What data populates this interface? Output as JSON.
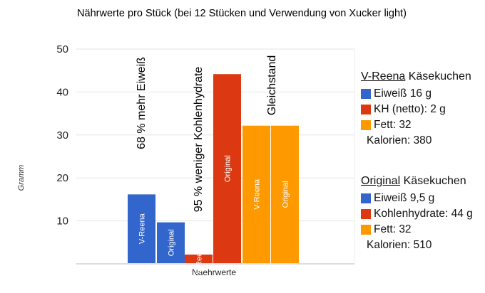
{
  "chart_data": {
    "type": "bar",
    "title": "Nährwerte pro Stück (bei 12 Stücken und Verwendung von Xucker light)",
    "xlabel": "Naehrwerte",
    "ylabel": "Gramm",
    "ylim": [
      0,
      50
    ],
    "yticks": [
      10,
      20,
      30,
      40,
      50
    ],
    "bars": [
      {
        "label": "V-Reena",
        "value": 16,
        "color": "#3366cc",
        "group": "Eiweiß"
      },
      {
        "label": "Original",
        "value": 9.5,
        "color": "#3366cc",
        "group": "Eiweiß"
      },
      {
        "label": "V-Reena",
        "value": 2,
        "color": "#dc3912",
        "group": "Kohlenhydrate"
      },
      {
        "label": "Original",
        "value": 44,
        "color": "#dc3912",
        "group": "Kohlenhydrate"
      },
      {
        "label": "V-Reena",
        "value": 32,
        "color": "#ff9900",
        "group": "Fett"
      },
      {
        "label": "Original",
        "value": 32,
        "color": "#ff9900",
        "group": "Fett"
      }
    ],
    "annotations": [
      "68 % mehr Eiweiß",
      "95 % weniger Kohlenhydrate",
      "Gleichstand"
    ],
    "legend": [
      {
        "name": "V-Reena",
        "suffix": "Käsekuchen",
        "items": [
          {
            "label": "Eiweiß 16 g",
            "color": "#3366cc"
          },
          {
            "label": "KH (netto): 2 g",
            "color": "#dc3912"
          },
          {
            "label": "Fett: 32",
            "color": "#ff9900"
          }
        ],
        "calories": "Kalorien: 380"
      },
      {
        "name": "Original",
        "suffix": "Käsekuchen",
        "items": [
          {
            "label": "Eiweiß 9,5 g",
            "color": "#3366cc"
          },
          {
            "label": "Kohlenhydrate: 44 g",
            "color": "#dc3912"
          },
          {
            "label": "Fett: 32",
            "color": "#ff9900"
          }
        ],
        "calories": "Kalorien: 510"
      }
    ]
  }
}
